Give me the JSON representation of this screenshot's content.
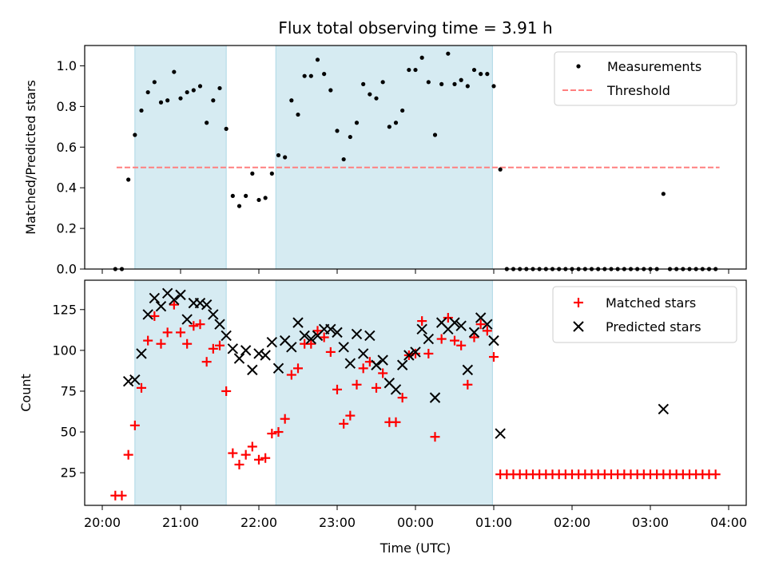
{
  "chart_data": [
    {
      "type": "scatter",
      "title": "Flux total observing time = 3.91 h",
      "xlabel": "",
      "ylabel": "Matched/Predicted stars",
      "ylim": [
        0,
        1.1
      ],
      "yticks": [
        "0.0",
        "0.2",
        "0.4",
        "0.6",
        "0.8",
        "1.0"
      ],
      "xlim": [
        "20:00",
        "04:00"
      ],
      "x_tick_labels": [
        "20:00",
        "21:00",
        "22:00",
        "23:00",
        "00:00",
        "01:00",
        "02:00",
        "03:00",
        "04:00"
      ],
      "shaded_intervals": [
        [
          "20:25",
          "21:35"
        ],
        [
          "22:13",
          "00:59"
        ]
      ],
      "shade_color": "#add8e6",
      "legend": {
        "position": "top-right",
        "entries": [
          {
            "label": "Measurements",
            "marker": "dot",
            "color": "#000000"
          },
          {
            "label": "Threshold",
            "marker": "dashed-line",
            "color": "#ff7f7f"
          }
        ]
      },
      "threshold": {
        "value": 0.5,
        "x_start": "20:11",
        "x_end": "03:53",
        "color": "#ff7f7f"
      },
      "series": [
        {
          "label": "Measurements",
          "color": "#000000",
          "points": [
            [
              "20:10",
              0.0
            ],
            [
              "20:15",
              0.0
            ],
            [
              "20:20",
              0.44
            ],
            [
              "20:25",
              0.66
            ],
            [
              "20:30",
              0.78
            ],
            [
              "20:35",
              0.87
            ],
            [
              "20:40",
              0.92
            ],
            [
              "20:45",
              0.82
            ],
            [
              "20:50",
              0.83
            ],
            [
              "20:55",
              0.97
            ],
            [
              "21:00",
              0.84
            ],
            [
              "21:05",
              0.87
            ],
            [
              "21:10",
              0.88
            ],
            [
              "21:15",
              0.9
            ],
            [
              "21:20",
              0.72
            ],
            [
              "21:25",
              0.83
            ],
            [
              "21:30",
              0.89
            ],
            [
              "21:35",
              0.69
            ],
            [
              "21:40",
              0.36
            ],
            [
              "21:45",
              0.31
            ],
            [
              "21:50",
              0.36
            ],
            [
              "21:55",
              0.47
            ],
            [
              "22:00",
              0.34
            ],
            [
              "22:05",
              0.35
            ],
            [
              "22:10",
              0.47
            ],
            [
              "22:15",
              0.56
            ],
            [
              "22:20",
              0.55
            ],
            [
              "22:25",
              0.83
            ],
            [
              "22:30",
              0.76
            ],
            [
              "22:35",
              0.95
            ],
            [
              "22:40",
              0.95
            ],
            [
              "22:45",
              1.03
            ],
            [
              "22:50",
              0.96
            ],
            [
              "22:55",
              0.88
            ],
            [
              "23:00",
              0.68
            ],
            [
              "23:05",
              0.54
            ],
            [
              "23:10",
              0.65
            ],
            [
              "23:15",
              0.72
            ],
            [
              "23:20",
              0.91
            ],
            [
              "23:25",
              0.86
            ],
            [
              "23:30",
              0.84
            ],
            [
              "23:35",
              0.92
            ],
            [
              "23:40",
              0.7
            ],
            [
              "23:45",
              0.72
            ],
            [
              "23:50",
              0.78
            ],
            [
              "23:55",
              0.98
            ],
            [
              "00:00",
              0.98
            ],
            [
              "00:05",
              1.04
            ],
            [
              "00:10",
              0.92
            ],
            [
              "00:15",
              0.66
            ],
            [
              "00:20",
              0.91
            ],
            [
              "00:25",
              1.06
            ],
            [
              "00:30",
              0.91
            ],
            [
              "00:35",
              0.93
            ],
            [
              "00:40",
              0.9
            ],
            [
              "00:45",
              0.98
            ],
            [
              "00:50",
              0.96
            ],
            [
              "00:55",
              0.96
            ],
            [
              "01:00",
              0.9
            ],
            [
              "01:05",
              0.49
            ],
            [
              "01:10",
              0.0
            ],
            [
              "01:15",
              0.0
            ],
            [
              "01:20",
              0.0
            ],
            [
              "01:25",
              0.0
            ],
            [
              "01:30",
              0.0
            ],
            [
              "01:35",
              0.0
            ],
            [
              "01:40",
              0.0
            ],
            [
              "01:45",
              0.0
            ],
            [
              "01:50",
              0.0
            ],
            [
              "01:55",
              0.0
            ],
            [
              "02:00",
              0.0
            ],
            [
              "02:05",
              0.0
            ],
            [
              "02:10",
              0.0
            ],
            [
              "02:15",
              0.0
            ],
            [
              "02:20",
              0.0
            ],
            [
              "02:25",
              0.0
            ],
            [
              "02:30",
              0.0
            ],
            [
              "02:35",
              0.0
            ],
            [
              "02:40",
              0.0
            ],
            [
              "02:45",
              0.0
            ],
            [
              "02:50",
              0.0
            ],
            [
              "02:55",
              0.0
            ],
            [
              "03:00",
              0.0
            ],
            [
              "03:05",
              0.0
            ],
            [
              "03:10",
              0.37
            ],
            [
              "03:15",
              0.0
            ],
            [
              "03:20",
              0.0
            ],
            [
              "03:25",
              0.0
            ],
            [
              "03:30",
              0.0
            ],
            [
              "03:35",
              0.0
            ],
            [
              "03:40",
              0.0
            ],
            [
              "03:45",
              0.0
            ],
            [
              "03:50",
              0.0
            ]
          ]
        }
      ]
    },
    {
      "type": "scatter",
      "title": "",
      "xlabel": "Time (UTC)",
      "ylabel": "Count",
      "ylim": [
        5,
        143
      ],
      "yticks": [
        "25",
        "50",
        "75",
        "100",
        "125"
      ],
      "xlim": [
        "20:00",
        "04:00"
      ],
      "x_tick_labels": [
        "20:00",
        "21:00",
        "22:00",
        "23:00",
        "00:00",
        "01:00",
        "02:00",
        "03:00",
        "04:00"
      ],
      "shaded_intervals": [
        [
          "20:25",
          "21:35"
        ],
        [
          "22:13",
          "00:59"
        ]
      ],
      "shade_color": "#add8e6",
      "legend": {
        "position": "top-right",
        "entries": [
          {
            "label": "Matched stars",
            "marker": "plus",
            "color": "#ff0000"
          },
          {
            "label": "Predicted stars",
            "marker": "x",
            "color": "#000000"
          }
        ]
      },
      "series": [
        {
          "label": "Matched stars",
          "color": "#ff0000",
          "points": [
            [
              "20:10",
              11
            ],
            [
              "20:15",
              11
            ],
            [
              "20:20",
              36
            ],
            [
              "20:25",
              54
            ],
            [
              "20:30",
              77
            ],
            [
              "20:35",
              106
            ],
            [
              "20:40",
              121
            ],
            [
              "20:45",
              104
            ],
            [
              "20:50",
              111
            ],
            [
              "20:55",
              128
            ],
            [
              "21:00",
              111
            ],
            [
              "21:05",
              104
            ],
            [
              "21:10",
              115
            ],
            [
              "21:15",
              116
            ],
            [
              "21:20",
              93
            ],
            [
              "21:25",
              101
            ],
            [
              "21:30",
              103
            ],
            [
              "21:35",
              75
            ],
            [
              "21:40",
              37
            ],
            [
              "21:45",
              30
            ],
            [
              "21:50",
              36
            ],
            [
              "21:55",
              41
            ],
            [
              "22:00",
              33
            ],
            [
              "22:05",
              34
            ],
            [
              "22:10",
              49
            ],
            [
              "22:15",
              50
            ],
            [
              "22:20",
              58
            ],
            [
              "22:25",
              85
            ],
            [
              "22:30",
              89
            ],
            [
              "22:35",
              104
            ],
            [
              "22:40",
              104
            ],
            [
              "22:45",
              112
            ],
            [
              "22:50",
              108
            ],
            [
              "22:55",
              99
            ],
            [
              "23:00",
              76
            ],
            [
              "23:05",
              55
            ],
            [
              "23:10",
              60
            ],
            [
              "23:15",
              79
            ],
            [
              "23:20",
              89
            ],
            [
              "23:25",
              93
            ],
            [
              "23:30",
              77
            ],
            [
              "23:35",
              86
            ],
            [
              "23:40",
              56
            ],
            [
              "23:45",
              56
            ],
            [
              "23:50",
              71
            ],
            [
              "23:55",
              97
            ],
            [
              "00:00",
              98
            ],
            [
              "00:05",
              118
            ],
            [
              "00:10",
              98
            ],
            [
              "00:15",
              47
            ],
            [
              "00:20",
              107
            ],
            [
              "00:25",
              120
            ],
            [
              "00:30",
              106
            ],
            [
              "00:35",
              103
            ],
            [
              "00:40",
              79
            ],
            [
              "00:45",
              108
            ],
            [
              "00:50",
              116
            ],
            [
              "00:55",
              112
            ],
            [
              "01:00",
              96
            ],
            [
              "01:05",
              24
            ],
            [
              "01:10",
              24
            ],
            [
              "01:15",
              24
            ],
            [
              "01:20",
              24
            ],
            [
              "01:25",
              24
            ],
            [
              "01:30",
              24
            ],
            [
              "01:35",
              24
            ],
            [
              "01:40",
              24
            ],
            [
              "01:45",
              24
            ],
            [
              "01:50",
              24
            ],
            [
              "01:55",
              24
            ],
            [
              "02:00",
              24
            ],
            [
              "02:05",
              24
            ],
            [
              "02:10",
              24
            ],
            [
              "02:15",
              24
            ],
            [
              "02:20",
              24
            ],
            [
              "02:25",
              24
            ],
            [
              "02:30",
              24
            ],
            [
              "02:35",
              24
            ],
            [
              "02:40",
              24
            ],
            [
              "02:45",
              24
            ],
            [
              "02:50",
              24
            ],
            [
              "02:55",
              24
            ],
            [
              "03:00",
              24
            ],
            [
              "03:05",
              24
            ],
            [
              "03:10",
              24
            ],
            [
              "03:15",
              24
            ],
            [
              "03:20",
              24
            ],
            [
              "03:25",
              24
            ],
            [
              "03:30",
              24
            ],
            [
              "03:35",
              24
            ],
            [
              "03:40",
              24
            ],
            [
              "03:45",
              24
            ],
            [
              "03:50",
              24
            ]
          ]
        },
        {
          "label": "Predicted stars",
          "color": "#000000",
          "points": [
            [
              "20:20",
              81
            ],
            [
              "20:25",
              82
            ],
            [
              "20:30",
              98
            ],
            [
              "20:35",
              122
            ],
            [
              "20:40",
              132
            ],
            [
              "20:45",
              127
            ],
            [
              "20:50",
              135
            ],
            [
              "20:55",
              131
            ],
            [
              "21:00",
              134
            ],
            [
              "21:05",
              119
            ],
            [
              "21:10",
              129
            ],
            [
              "21:15",
              129
            ],
            [
              "21:20",
              128
            ],
            [
              "21:25",
              122
            ],
            [
              "21:30",
              116
            ],
            [
              "21:35",
              109
            ],
            [
              "21:40",
              101
            ],
            [
              "21:45",
              95
            ],
            [
              "21:50",
              100
            ],
            [
              "21:55",
              88
            ],
            [
              "22:00",
              98
            ],
            [
              "22:05",
              97
            ],
            [
              "22:10",
              105
            ],
            [
              "22:15",
              89
            ],
            [
              "22:20",
              106
            ],
            [
              "22:25",
              102
            ],
            [
              "22:30",
              117
            ],
            [
              "22:35",
              109
            ],
            [
              "22:40",
              107
            ],
            [
              "22:45",
              109
            ],
            [
              "22:50",
              113
            ],
            [
              "22:55",
              113
            ],
            [
              "23:00",
              111
            ],
            [
              "23:05",
              102
            ],
            [
              "23:10",
              92
            ],
            [
              "23:15",
              110
            ],
            [
              "23:20",
              98
            ],
            [
              "23:25",
              109
            ],
            [
              "23:30",
              91
            ],
            [
              "23:35",
              94
            ],
            [
              "23:40",
              80
            ],
            [
              "23:45",
              76
            ],
            [
              "23:50",
              91
            ],
            [
              "23:55",
              97
            ],
            [
              "00:00",
              99
            ],
            [
              "00:05",
              113
            ],
            [
              "00:10",
              107
            ],
            [
              "00:15",
              71
            ],
            [
              "00:20",
              117
            ],
            [
              "00:25",
              113
            ],
            [
              "00:30",
              117
            ],
            [
              "00:35",
              115
            ],
            [
              "00:40",
              88
            ],
            [
              "00:45",
              111
            ],
            [
              "00:50",
              120
            ],
            [
              "00:55",
              116
            ],
            [
              "01:00",
              106
            ],
            [
              "01:05",
              49
            ],
            [
              "03:10",
              64
            ]
          ]
        }
      ]
    }
  ]
}
